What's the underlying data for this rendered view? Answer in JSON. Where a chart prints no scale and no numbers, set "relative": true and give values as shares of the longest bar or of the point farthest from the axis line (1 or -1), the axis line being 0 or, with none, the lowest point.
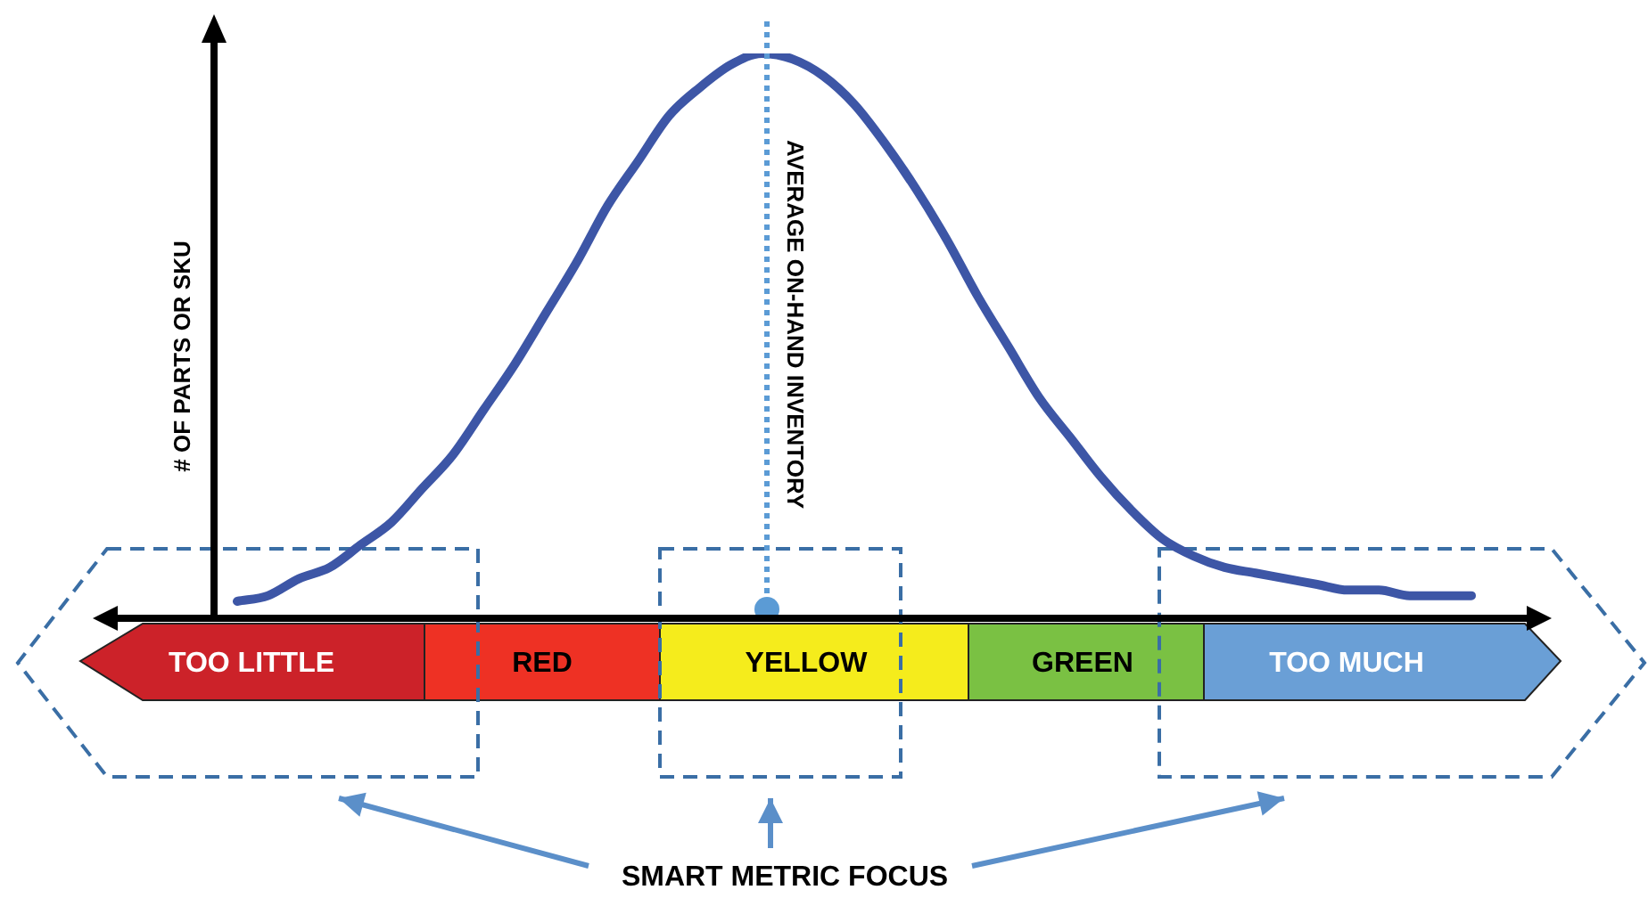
{
  "chart_data": {
    "type": "line",
    "relative": true,
    "ylabel": "# OF PARTS OR SKU",
    "categories": [
      null,
      null,
      null,
      null,
      null,
      null,
      null,
      null,
      null,
      null,
      null,
      null,
      null,
      null,
      null,
      null,
      null,
      null,
      null,
      null,
      null,
      null,
      null,
      null,
      null,
      null,
      null,
      null,
      null,
      null,
      null,
      null,
      null,
      null,
      null,
      null,
      null,
      null,
      null,
      null,
      null
    ],
    "series": [
      {
        "color": "#3d56a6",
        "values": [
          0.03,
          0.04,
          0.07,
          0.09,
          0.13,
          0.17,
          0.23,
          0.29,
          0.37,
          0.45,
          0.54,
          0.63,
          0.73,
          0.81,
          0.89,
          0.94,
          0.98,
          1,
          0.99,
          0.96,
          0.91,
          0.84,
          0.76,
          0.67,
          0.57,
          0.48,
          0.39,
          0.32,
          0.25,
          0.19,
          0.14,
          0.11,
          0.09,
          0.08,
          0.07,
          0.06,
          0.05,
          0.05,
          0.04,
          0.04,
          0.04
        ]
      }
    ],
    "marker": "none",
    "line_style": "solid",
    "legend": false,
    "annotations": [
      "TOO LITTLE",
      "RED",
      "YELLOW",
      "GREEN",
      "TOO MUCH",
      "AVERAGE ON-HAND INVENTORY",
      "SMART METRIC FOCUS"
    ]
  }
}
